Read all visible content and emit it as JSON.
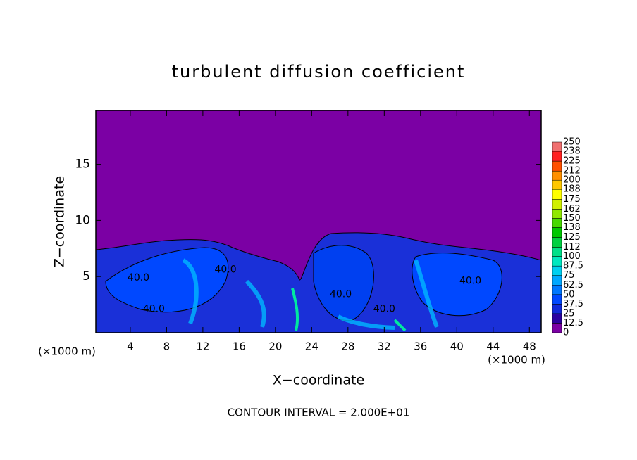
{
  "chart_data": {
    "type": "contour",
    "title": "turbulent diffusion coefficient",
    "x_label": "X−coordinate",
    "y_label": "Z−coordinate",
    "x_unit_left": "(×1000 m)",
    "x_unit_right": "(×1000 m)",
    "footer": "CONTOUR INTERVAL = 2.000E+01",
    "xlim": [
      0.2,
      49.3
    ],
    "xticks": [
      4,
      8,
      12,
      16,
      20,
      24,
      28,
      32,
      36,
      40,
      44,
      48
    ],
    "ylim": [
      0,
      19.8
    ],
    "yticks": [
      5,
      10,
      15
    ],
    "colorbar": {
      "levels": [
        0,
        12.5,
        25,
        37.5,
        50,
        62.5,
        75,
        87.5,
        100,
        112,
        125,
        138,
        150,
        162,
        175,
        188,
        200,
        212,
        225,
        238,
        250
      ],
      "colors": [
        "#7b00a4",
        "#2a00a0",
        "#1028d8",
        "#0048ff",
        "#0078ff",
        "#00a8ff",
        "#00d0f0",
        "#00e8c0",
        "#00e088",
        "#00d040",
        "#00c800",
        "#48d800",
        "#90e800",
        "#d0f000",
        "#ffff00",
        "#ffc800",
        "#ff9000",
        "#ff5000",
        "#ff2020",
        "#f07070"
      ]
    },
    "annotations": [
      {
        "text": "40.0",
        "x": 4.9,
        "y": 4.9
      },
      {
        "text": "40.0",
        "x": 6.6,
        "y": 2.1
      },
      {
        "text": "40.0",
        "x": 14.5,
        "y": 5.6
      },
      {
        "text": "40.0",
        "x": 27.2,
        "y": 3.4
      },
      {
        "text": "40.0",
        "x": 32.0,
        "y": 2.1
      },
      {
        "text": "40.0",
        "x": 41.5,
        "y": 4.6
      }
    ]
  }
}
